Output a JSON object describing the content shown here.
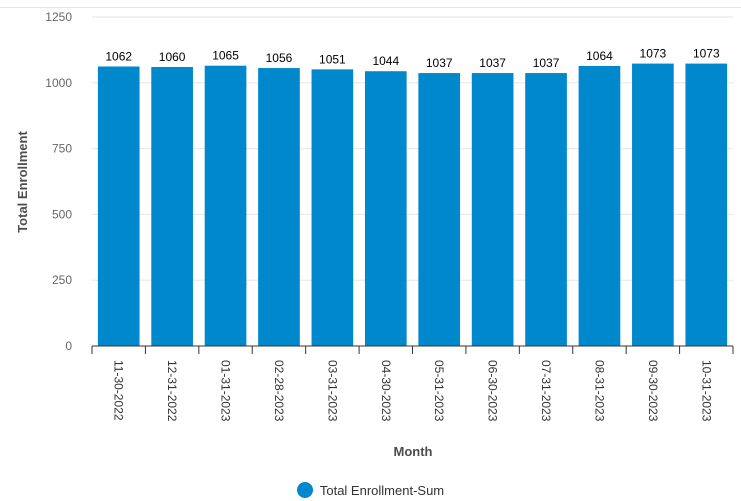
{
  "chart_data": {
    "type": "bar",
    "xlabel": "Month",
    "ylabel": "Total Enrollment",
    "categories": [
      "11-30-2022",
      "12-31-2022",
      "01-31-2023",
      "02-28-2023",
      "03-31-2023",
      "04-30-2023",
      "05-31-2023",
      "06-30-2023",
      "07-31-2023",
      "08-31-2023",
      "09-30-2023",
      "10-31-2023"
    ],
    "series": [
      {
        "name": "Total Enrollment-Sum",
        "values": [
          1062,
          1060,
          1065,
          1056,
          1051,
          1044,
          1037,
          1037,
          1037,
          1064,
          1073,
          1073
        ]
      }
    ],
    "ylim": [
      0,
      1250
    ],
    "yticks": [
      0,
      250,
      500,
      750,
      1000,
      1250
    ],
    "grid": true,
    "data_labels": true,
    "legend_position": "bottom-center",
    "colors": {
      "bar": "#0088cc",
      "grid": "#e6e6e6",
      "axis": "#333333"
    }
  }
}
